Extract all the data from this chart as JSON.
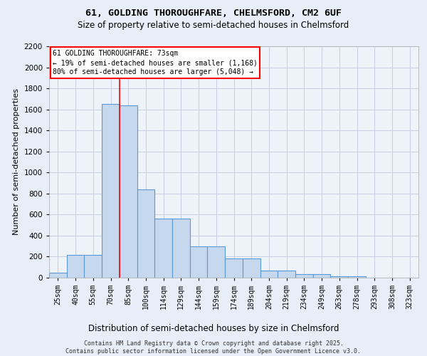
{
  "title1": "61, GOLDING THOROUGHFARE, CHELMSFORD, CM2 6UF",
  "title2": "Size of property relative to semi-detached houses in Chelmsford",
  "xlabel": "Distribution of semi-detached houses by size in Chelmsford",
  "ylabel": "Number of semi-detached properties",
  "categories": [
    "25sqm",
    "40sqm",
    "55sqm",
    "70sqm",
    "85sqm",
    "100sqm",
    "114sqm",
    "129sqm",
    "144sqm",
    "159sqm",
    "174sqm",
    "189sqm",
    "204sqm",
    "219sqm",
    "234sqm",
    "249sqm",
    "263sqm",
    "278sqm",
    "293sqm",
    "308sqm",
    "323sqm"
  ],
  "values": [
    50,
    220,
    220,
    1650,
    1640,
    840,
    560,
    560,
    300,
    300,
    180,
    180,
    65,
    65,
    35,
    35,
    15,
    15,
    0,
    0,
    0
  ],
  "bar_color": "#c5d8ee",
  "bar_edge_color": "#5b9bd5",
  "vline_color": "red",
  "vline_pos": 3.5,
  "annotation_title": "61 GOLDING THOROUGHFARE: 73sqm",
  "annotation_line1": "← 19% of semi-detached houses are smaller (1,168)",
  "annotation_line2": "80% of semi-detached houses are larger (5,048) →",
  "annotation_box_facecolor": "white",
  "annotation_box_edgecolor": "red",
  "footer1": "Contains HM Land Registry data © Crown copyright and database right 2025.",
  "footer2": "Contains public sector information licensed under the Open Government Licence v3.0.",
  "ylim": [
    0,
    2200
  ],
  "yticks": [
    0,
    200,
    400,
    600,
    800,
    1000,
    1200,
    1400,
    1600,
    1800,
    2000,
    2200
  ],
  "bg_color": "#e8eef8",
  "plot_bg_color": "#eef3fa",
  "grid_color": "#c5cfe0"
}
